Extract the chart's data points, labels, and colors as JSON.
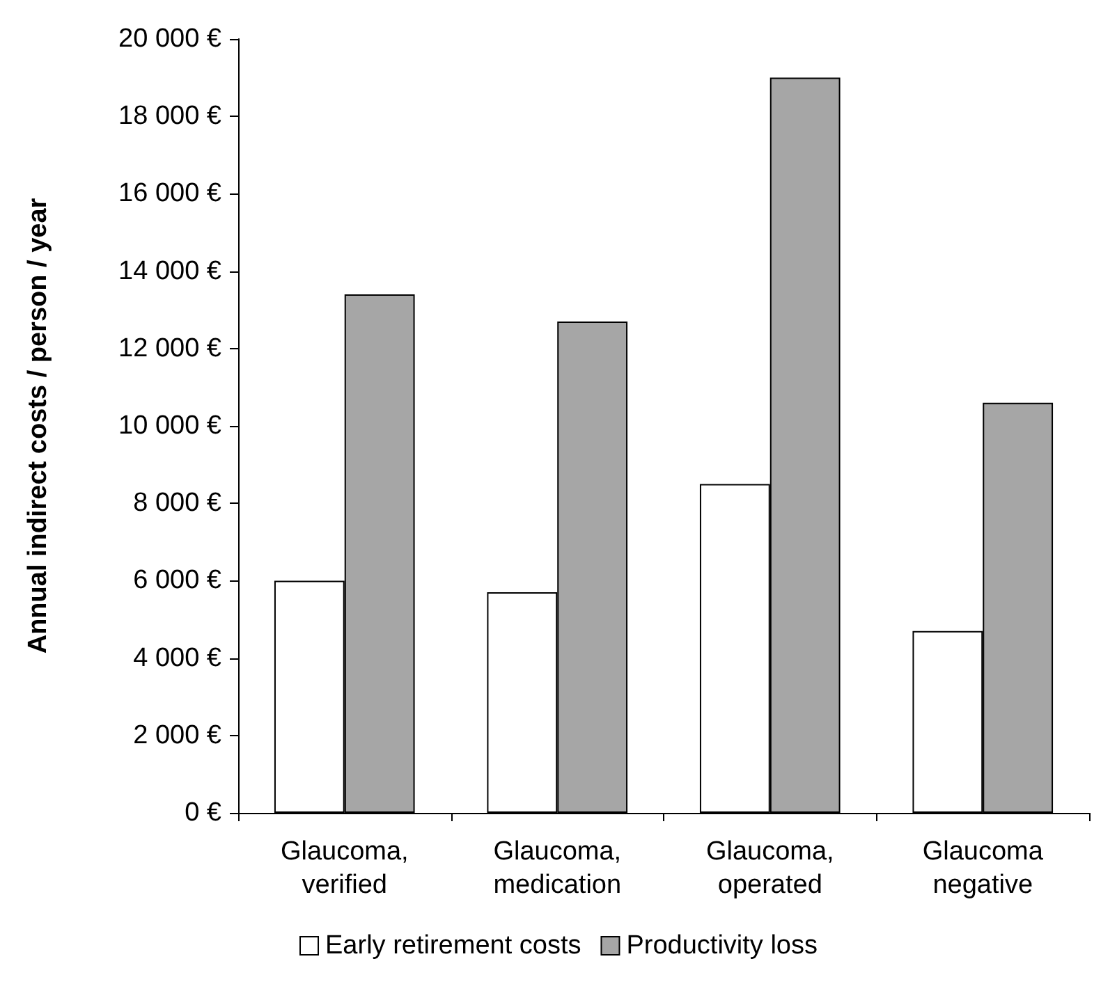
{
  "chart_data": {
    "type": "bar",
    "ylabel": "Annual indirect costs / person / year",
    "categories": [
      "Glaucoma,\nverified",
      "Glaucoma,\nmedication",
      "Glaucoma,\noperated",
      "Glaucoma\nnegative"
    ],
    "series": [
      {
        "name": "Early retirement costs",
        "color": "#ffffff",
        "values": [
          6000,
          5700,
          8500,
          4700
        ]
      },
      {
        "name": "Productivity loss",
        "color": "#a6a6a6",
        "values": [
          13400,
          12700,
          19000,
          10600
        ]
      }
    ],
    "ylim": [
      0,
      20000
    ],
    "yticks": [
      {
        "value": 0,
        "label": "0 €"
      },
      {
        "value": 2000,
        "label": "2 000 €"
      },
      {
        "value": 4000,
        "label": "4 000 €"
      },
      {
        "value": 6000,
        "label": "6 000 €"
      },
      {
        "value": 8000,
        "label": "8 000 €"
      },
      {
        "value": 10000,
        "label": "10 000 €"
      },
      {
        "value": 12000,
        "label": "12 000 €"
      },
      {
        "value": 14000,
        "label": "14 000 €"
      },
      {
        "value": 16000,
        "label": "16 000 €"
      },
      {
        "value": 18000,
        "label": "18 000 €"
      },
      {
        "value": 20000,
        "label": "20 000 €"
      }
    ],
    "grid": false,
    "legend": "bottom"
  }
}
